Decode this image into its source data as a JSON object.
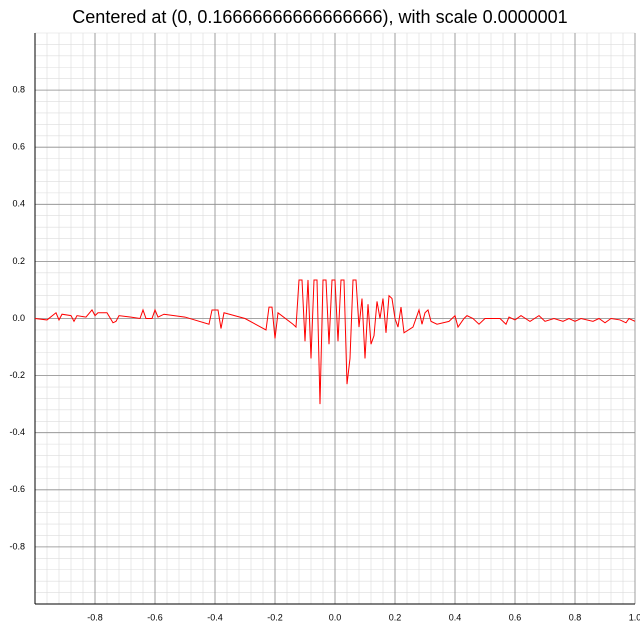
{
  "chart_data": {
    "type": "line",
    "title": "Centered at (0, 0.16666666666666666), with scale 0.0000001",
    "x": [
      -1.0,
      -0.96,
      -0.93,
      -0.92,
      -0.91,
      -0.88,
      -0.87,
      -0.86,
      -0.83,
      -0.81,
      -0.8,
      -0.79,
      -0.76,
      -0.74,
      -0.73,
      -0.72,
      -0.68,
      -0.65,
      -0.64,
      -0.63,
      -0.61,
      -0.6,
      -0.59,
      -0.57,
      -0.5,
      -0.42,
      -0.41,
      -0.39,
      -0.38,
      -0.37,
      -0.3,
      -0.23,
      -0.22,
      -0.21,
      -0.2,
      -0.19,
      -0.14,
      -0.13,
      -0.12,
      -0.11,
      -0.1,
      -0.09,
      -0.08,
      -0.07,
      -0.06,
      -0.05,
      -0.04,
      -0.03,
      -0.02,
      -0.01,
      0.0,
      0.01,
      0.02,
      0.03,
      0.04,
      0.05,
      0.06,
      0.07,
      0.08,
      0.09,
      0.1,
      0.11,
      0.12,
      0.13,
      0.14,
      0.15,
      0.16,
      0.17,
      0.18,
      0.19,
      0.2,
      0.21,
      0.22,
      0.23,
      0.26,
      0.28,
      0.29,
      0.3,
      0.31,
      0.32,
      0.34,
      0.38,
      0.4,
      0.41,
      0.43,
      0.44,
      0.46,
      0.48,
      0.5,
      0.55,
      0.57,
      0.58,
      0.6,
      0.62,
      0.65,
      0.68,
      0.7,
      0.73,
      0.76,
      0.78,
      0.8,
      0.82,
      0.86,
      0.88,
      0.9,
      0.92,
      0.95,
      0.97,
      0.98,
      1.0
    ],
    "series": [
      {
        "color": "#ff0000",
        "values": [
          0.0,
          -0.005,
          0.02,
          -0.005,
          0.015,
          0.01,
          -0.01,
          0.01,
          0.005,
          0.03,
          0.01,
          0.02,
          0.02,
          -0.015,
          -0.01,
          0.01,
          0.005,
          0.0,
          0.03,
          0.0,
          0.0,
          0.03,
          0.005,
          0.015,
          0.005,
          -0.02,
          0.03,
          0.03,
          -0.035,
          0.02,
          0.0,
          -0.04,
          0.04,
          0.04,
          -0.07,
          0.02,
          -0.02,
          -0.03,
          0.135,
          0.135,
          -0.08,
          0.135,
          -0.14,
          0.135,
          0.135,
          -0.3,
          0.135,
          0.135,
          -0.09,
          0.135,
          0.135,
          -0.08,
          0.135,
          0.135,
          -0.23,
          -0.14,
          0.135,
          0.135,
          -0.03,
          0.07,
          -0.14,
          0.05,
          -0.09,
          -0.06,
          0.06,
          0.0,
          0.07,
          -0.05,
          0.08,
          0.07,
          0.0,
          -0.03,
          0.04,
          -0.05,
          -0.03,
          0.03,
          -0.02,
          0.02,
          0.03,
          -0.01,
          -0.02,
          -0.01,
          0.01,
          -0.03,
          0.0,
          0.01,
          0.0,
          -0.02,
          0.0,
          0.0,
          -0.02,
          0.005,
          -0.005,
          0.01,
          -0.01,
          0.01,
          -0.01,
          0.0,
          -0.01,
          0.0,
          -0.01,
          0.0,
          -0.01,
          0.0,
          -0.015,
          0.0,
          -0.005,
          -0.015,
          0.0,
          -0.01
        ]
      }
    ],
    "xlim": [
      -1.0,
      1.0
    ],
    "ylim": [
      -1.0,
      1.0
    ],
    "xticks": [
      -0.8,
      -0.6,
      -0.4,
      -0.2,
      {
        "value": 0,
        "label": "0.0"
      },
      0.2,
      0.4,
      0.6,
      0.8,
      {
        "value": 1,
        "label": "1.0"
      }
    ],
    "yticks": [
      -0.8,
      -0.6,
      -0.4,
      -0.2,
      {
        "value": 0,
        "label": "0.0"
      },
      0.2,
      0.4,
      0.6,
      0.8
    ],
    "grid": true,
    "minor_divisions": 5
  }
}
